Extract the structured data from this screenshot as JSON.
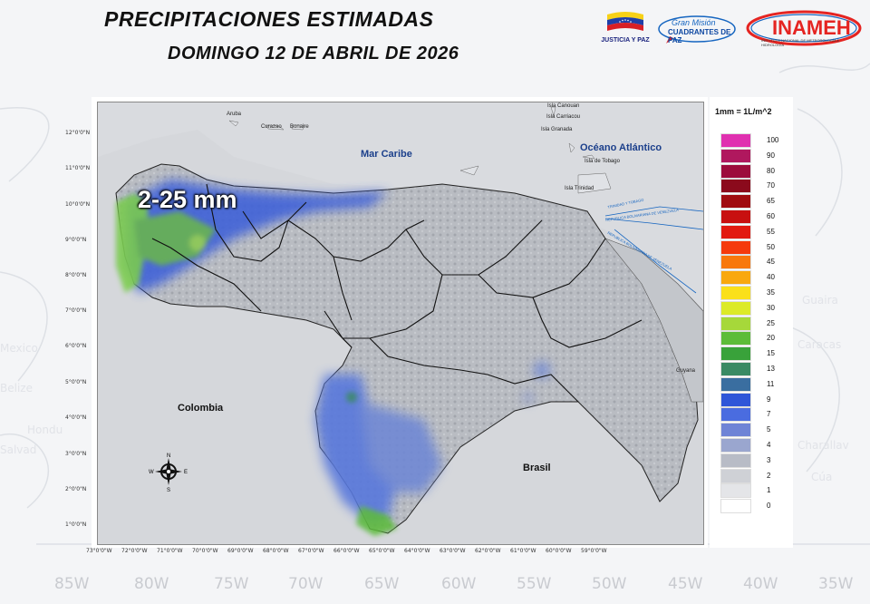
{
  "header": {
    "title": "PRECIPITACIONES ESTIMADAS",
    "date": "DOMINGO 12 DE ABRIL DE 2026"
  },
  "logos": {
    "justicia_paz": "JUSTICIA Y PAZ",
    "gran_mision_1": "Gran Misión",
    "gran_mision_2": "CUADRANTES DE PAZ",
    "inameh": "INAMEH",
    "inameh_sub": "INSTITUTO NACIONAL DE METEOROLOGÍA E HIDROLOGÍA"
  },
  "background": {
    "longitudes": [
      "85W",
      "80W",
      "75W",
      "70W",
      "65W",
      "60W",
      "55W",
      "50W",
      "45W",
      "40W",
      "35W"
    ]
  },
  "map": {
    "lat_labels": [
      "12°0'0\"N",
      "11°0'0\"N",
      "10°0'0\"N",
      "9°0'0\"N",
      "8°0'0\"N",
      "7°0'0\"N",
      "6°0'0\"N",
      "5°0'0\"N",
      "4°0'0\"N",
      "3°0'0\"N",
      "2°0'0\"N",
      "1°0'0\"N"
    ],
    "lon_labels": [
      "73°0'0\"W",
      "72°0'0\"W",
      "71°0'0\"W",
      "70°0'0\"W",
      "69°0'0\"W",
      "68°0'0\"W",
      "67°0'0\"W",
      "66°0'0\"W",
      "65°0'0\"W",
      "64°0'0\"W",
      "63°0'0\"W",
      "62°0'0\"W",
      "61°0'0\"W",
      "60°0'0\"W",
      "59°0'0\"W"
    ],
    "seas": {
      "caribe": "Mar Caribe",
      "atlantico": "Océano Atlántico"
    },
    "countries": {
      "colombia": "Colombia",
      "brasil": "Brasil",
      "guyana": "Guyana"
    },
    "places": {
      "aruba": "Aruba",
      "curazao": "Curazao",
      "bonaire": "Bonaire",
      "canouan": "Isla Canouan",
      "carriacou": "Isla Carriacou",
      "granada": "Isla Granada",
      "tobago": "Isla de Tobago",
      "trinidad": "Isla Trinidad"
    },
    "border_texts": {
      "tt": "TRINIDAD Y TOBAGO",
      "rbv1": "REPUBLICA BOLIVARIANA DE VENEZUELA",
      "rbv2": "REPUBLICA BOLIVARIANA DE VENEZUELA"
    },
    "rain_annotation": "2-25 mm",
    "compass": {
      "n": "N",
      "s": "S",
      "e": "E",
      "w": "W"
    }
  },
  "legend": {
    "title": "1mm = 1L/m^2",
    "items": [
      {
        "label": "100",
        "color": "#e030b0"
      },
      {
        "label": "90",
        "color": "#b0185e"
      },
      {
        "label": "80",
        "color": "#9c0c3c"
      },
      {
        "label": "70",
        "color": "#8b0a1c"
      },
      {
        "label": "65",
        "color": "#a00c10"
      },
      {
        "label": "60",
        "color": "#c81010"
      },
      {
        "label": "55",
        "color": "#e21a10"
      },
      {
        "label": "50",
        "color": "#f53a0c"
      },
      {
        "label": "45",
        "color": "#f8780c"
      },
      {
        "label": "40",
        "color": "#f9a80e"
      },
      {
        "label": "35",
        "color": "#fae01a"
      },
      {
        "label": "30",
        "color": "#dcea28"
      },
      {
        "label": "25",
        "color": "#a6d83a"
      },
      {
        "label": "20",
        "color": "#5cbc38"
      },
      {
        "label": "15",
        "color": "#39a23a"
      },
      {
        "label": "13",
        "color": "#3a8a64"
      },
      {
        "label": "11",
        "color": "#3a6ea0"
      },
      {
        "label": "9",
        "color": "#2f56d8"
      },
      {
        "label": "7",
        "color": "#4a6ce0"
      },
      {
        "label": "5",
        "color": "#6f84d6"
      },
      {
        "label": "4",
        "color": "#9aa6cf"
      },
      {
        "label": "3",
        "color": "#b8bcc6"
      },
      {
        "label": "2",
        "color": "#cfd1d6"
      },
      {
        "label": "1",
        "color": "#e4e5e8"
      },
      {
        "label": "0",
        "color": "#ffffff"
      }
    ]
  }
}
